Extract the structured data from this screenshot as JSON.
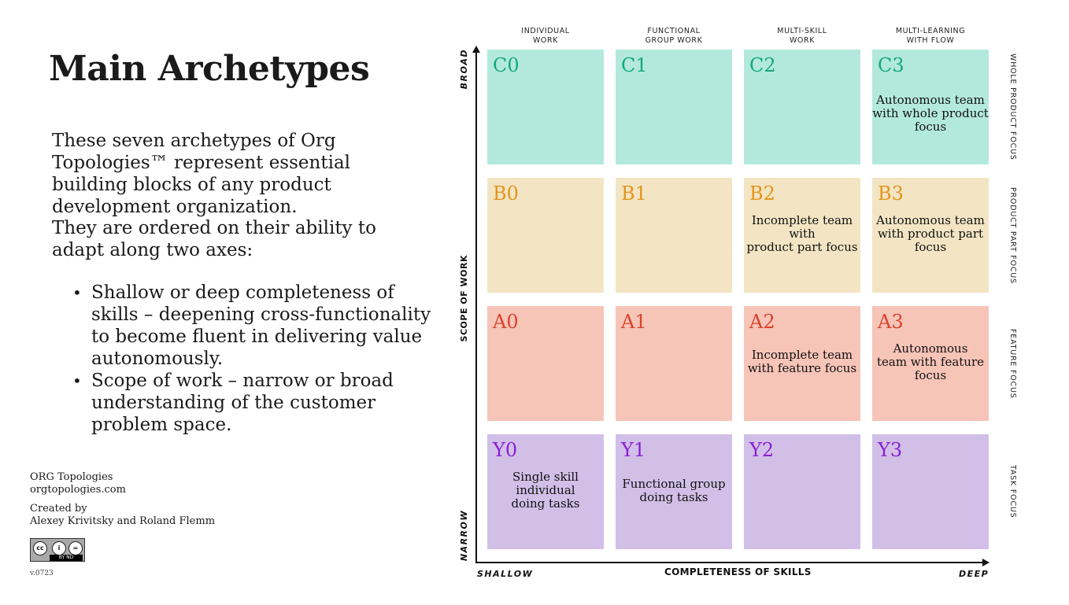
{
  "title": "Main Archetypes",
  "intro_paragraph_1": "These seven archetypes of Org Topologies™ represent essential building blocks of any product development organization.",
  "intro_paragraph_2": "They are ordered on their ability to adapt along two axes:",
  "bullets": [
    "Shallow or deep completeness of skills – deepening cross-functionality to become fluent in delivering value autonomously.",
    "Scope of work – narrow or broad understanding of the customer problem space."
  ],
  "credits": {
    "brand": "ORG Topologies",
    "website": "orgtopologies.com",
    "created_by_label": "Created by",
    "authors": "Alexey Krivitsky and Roland Flemm",
    "license_text": "BY ND",
    "version": "v.0723"
  },
  "diagram": {
    "columns": [
      {
        "line1": "INDIVIDUAL",
        "line2": "WORK"
      },
      {
        "line1": "FUNCTIONAL",
        "line2": "GROUP WORK"
      },
      {
        "line1": "MULTI-SKILL",
        "line2": "WORK"
      },
      {
        "line1": "MULTI-LEARNING",
        "line2": "WITH FLOW"
      }
    ],
    "row_labels": [
      "WHOLE PRODUCT FOCUS",
      "PRODUCT PART FOCUS",
      "FEATURE FOCUS",
      "TASK FOCUS"
    ],
    "y_axis": {
      "label": "SCOPE OF WORK",
      "top": "BROAD",
      "bottom": "NARROW"
    },
    "x_axis": {
      "label": "COMPLETENESS OF SKILLS",
      "left": "SHALLOW",
      "right": "DEEP"
    },
    "colors": {
      "C": "#b3e9dc",
      "B": "#f3e5c4",
      "A": "#f7c4b8",
      "Y": "#d2bfe8"
    },
    "cells": {
      "C0": {
        "code": "C0",
        "desc": ""
      },
      "C1": {
        "code": "C1",
        "desc": ""
      },
      "C2": {
        "code": "C2",
        "desc": ""
      },
      "C3": {
        "code": "C3",
        "desc_lines": [
          "Autonomous team",
          "with whole product",
          "focus"
        ]
      },
      "B0": {
        "code": "B0",
        "desc": ""
      },
      "B1": {
        "code": "B1",
        "desc": ""
      },
      "B2": {
        "code": "B2",
        "desc_lines": [
          "Incomplete team",
          "with",
          "product part focus"
        ]
      },
      "B3": {
        "code": "B3",
        "desc_lines": [
          "Autonomous team",
          "with product part",
          "focus"
        ]
      },
      "A0": {
        "code": "A0",
        "desc": ""
      },
      "A1": {
        "code": "A1",
        "desc": ""
      },
      "A2": {
        "code": "A2",
        "desc_lines": [
          "Incomplete team",
          "with feature focus"
        ]
      },
      "A3": {
        "code": "A3",
        "desc_lines": [
          "Autonomous",
          "team with feature",
          "focus"
        ]
      },
      "Y0": {
        "code": "Y0",
        "desc_lines": [
          "Single skill",
          "individual",
          "doing tasks"
        ]
      },
      "Y1": {
        "code": "Y1",
        "desc_lines": [
          "Functional group",
          "doing tasks"
        ]
      },
      "Y2": {
        "code": "Y2",
        "desc": ""
      },
      "Y3": {
        "code": "Y3",
        "desc": ""
      }
    }
  }
}
